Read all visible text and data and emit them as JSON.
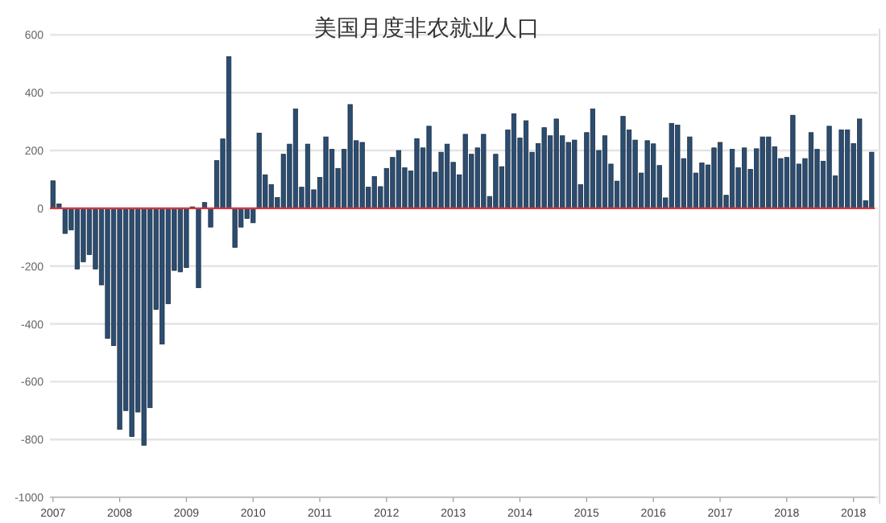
{
  "chart_data": {
    "type": "bar",
    "title": "美国月度非农就业人口",
    "categories": [
      "2007",
      null,
      null,
      null,
      null,
      null,
      null,
      null,
      null,
      null,
      null,
      "2008",
      null,
      null,
      null,
      null,
      null,
      null,
      null,
      null,
      null,
      null,
      "2009",
      null,
      null,
      null,
      null,
      null,
      null,
      null,
      null,
      null,
      null,
      "2010",
      null,
      null,
      null,
      null,
      null,
      null,
      null,
      null,
      null,
      null,
      "2011",
      null,
      null,
      null,
      null,
      null,
      null,
      null,
      null,
      null,
      null,
      "2012",
      null,
      null,
      null,
      null,
      null,
      null,
      null,
      null,
      null,
      null,
      "2013",
      null,
      null,
      null,
      null,
      null,
      null,
      null,
      null,
      null,
      null,
      "2014",
      null,
      null,
      null,
      null,
      null,
      null,
      null,
      null,
      null,
      null,
      "2015",
      null,
      null,
      null,
      null,
      null,
      null,
      null,
      null,
      null,
      null,
      "2016",
      null,
      null,
      null,
      null,
      null,
      null,
      null,
      null,
      null,
      null,
      "2017",
      null,
      null,
      null,
      null,
      null,
      null,
      null,
      null,
      null,
      null,
      "2018",
      null,
      null,
      null,
      null,
      null,
      null,
      null,
      null,
      null,
      null,
      "2018",
      null,
      null,
      null
    ],
    "values": [
      95,
      15,
      -87,
      -75,
      -210,
      -185,
      -160,
      -210,
      -265,
      -450,
      -475,
      -765,
      -700,
      -790,
      -705,
      -820,
      -690,
      -350,
      -470,
      -330,
      -215,
      -220,
      -205,
      5,
      -275,
      20,
      -65,
      165,
      240,
      525,
      -135,
      -65,
      -35,
      -50,
      260,
      116,
      82,
      37,
      187,
      222,
      344,
      73,
      222,
      64,
      107,
      247,
      204,
      138,
      204,
      359,
      234,
      228,
      73,
      110,
      75,
      138,
      176,
      200,
      140,
      129,
      241,
      209,
      284,
      125,
      194,
      222,
      159,
      116,
      256,
      187,
      209,
      256,
      41,
      187,
      144,
      271,
      327,
      243,
      303,
      194,
      224,
      279,
      251,
      309,
      251,
      228,
      236,
      82,
      262,
      344,
      200,
      251,
      153,
      94,
      318,
      271,
      236,
      122,
      234,
      223,
      148,
      36,
      294,
      288,
      172,
      247,
      122,
      157,
      150,
      209,
      228,
      45,
      204,
      140,
      209,
      135,
      206,
      247,
      247,
      213,
      172,
      176,
      322,
      153,
      172,
      262,
      204,
      163,
      284,
      112,
      271,
      271,
      224,
      309,
      26,
      194
    ],
    "color": "#2c4d70",
    "ylim": [
      -1000,
      600
    ],
    "yticks": [
      -1000,
      -800,
      -600,
      -400,
      -200,
      0,
      200,
      400,
      600
    ],
    "grid": "y",
    "ref_lines": [
      {
        "axis": "y",
        "value": 0,
        "color": "#d9353f"
      }
    ]
  }
}
